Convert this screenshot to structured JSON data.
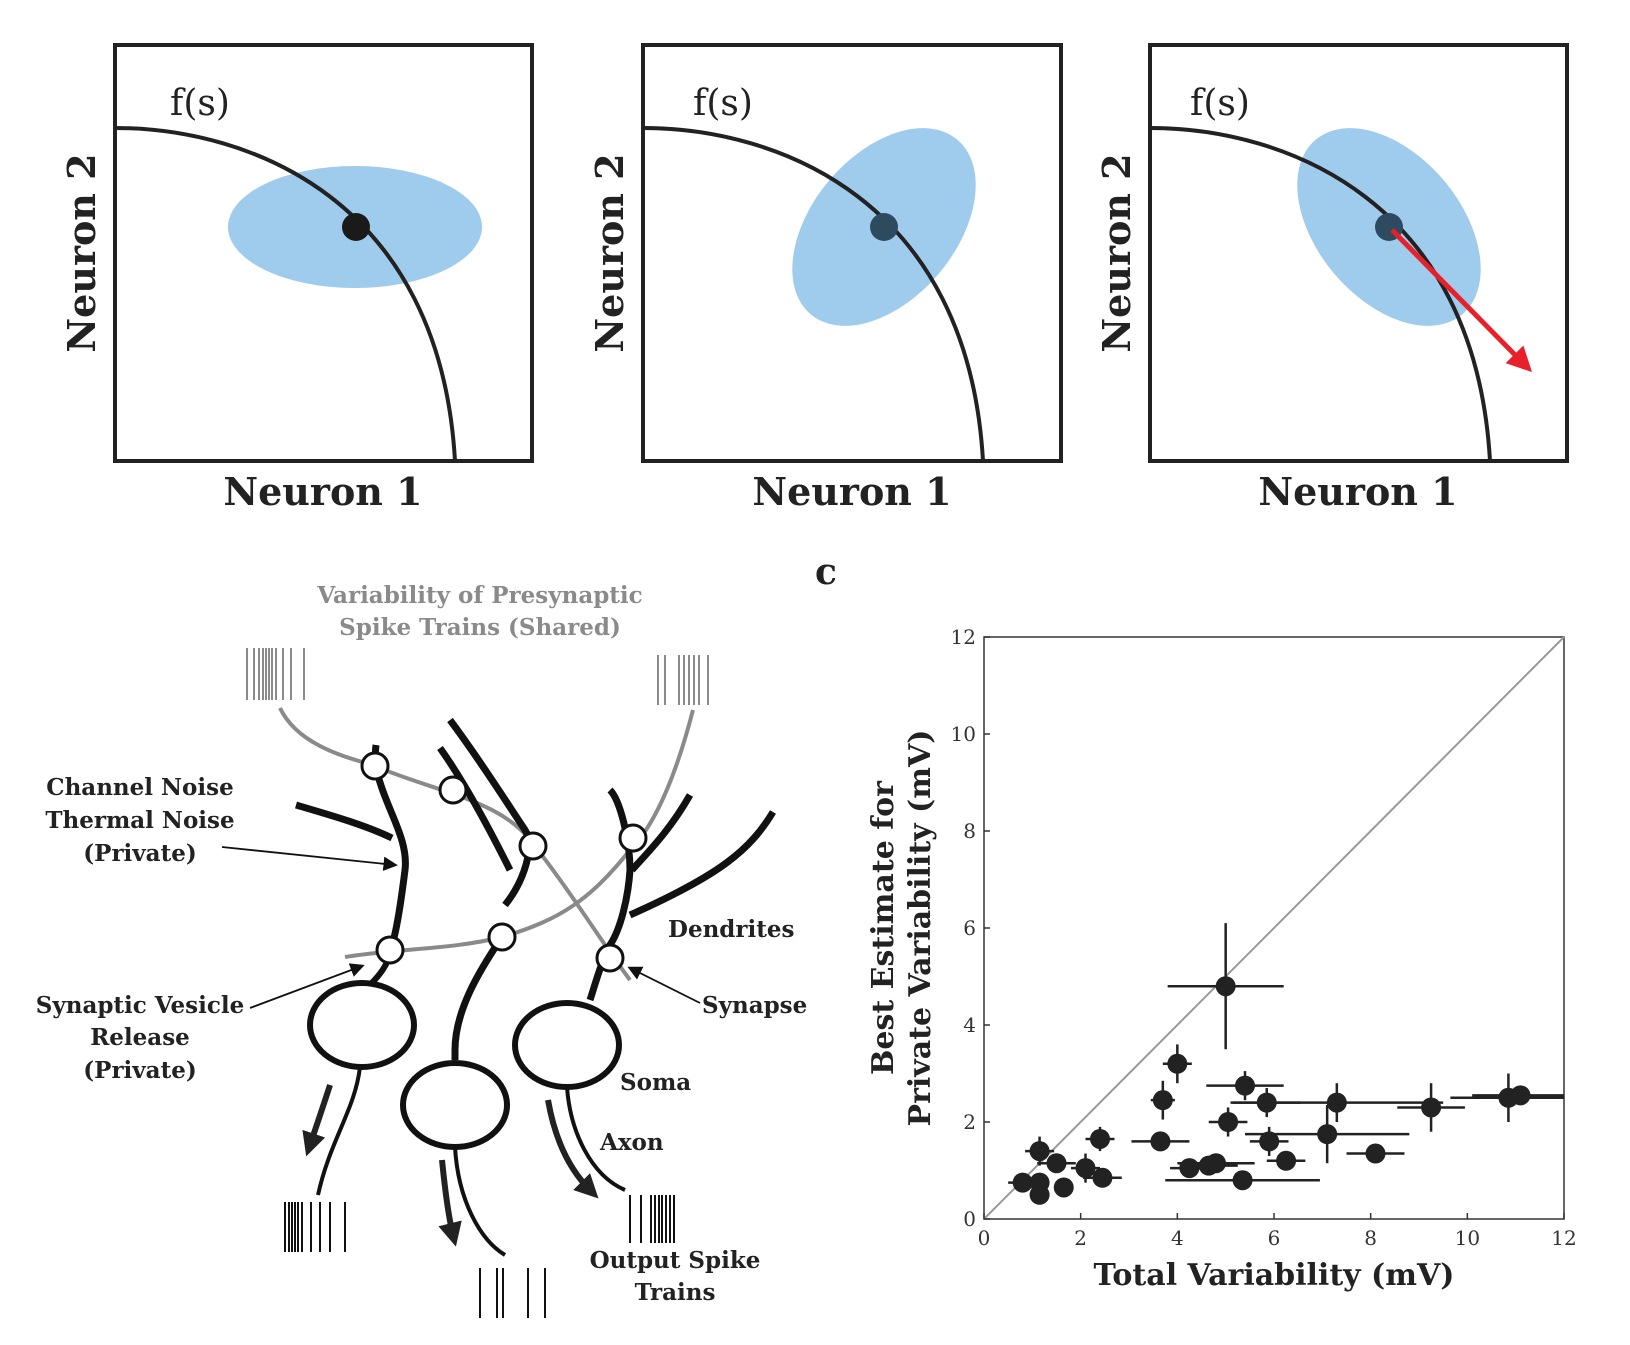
{
  "panels_top": [
    {
      "curve_label": "f(s)",
      "xlabel": "Neuron 1",
      "ylabel": "Neuron 2"
    },
    {
      "curve_label": "f(s)",
      "xlabel": "Neuron 1",
      "ylabel": "Neuron 2"
    },
    {
      "curve_label": "f(s)",
      "xlabel": "Neuron 1",
      "ylabel": "Neuron 2"
    }
  ],
  "panel_c_letter": "c",
  "diagram": {
    "presynaptic_line1": "Variability of Presynaptic",
    "presynaptic_line2": "Spike Trains (Shared)",
    "channel_noise_line1": "Channel Noise",
    "channel_noise_line2": "Thermal Noise",
    "channel_noise_line3": "(Private)",
    "vesicle_line1": "Synaptic Vesicle",
    "vesicle_line2": "Release",
    "vesicle_line3": "(Private)",
    "dendrites": "Dendrites",
    "synapse": "Synapse",
    "soma": "Soma",
    "axon": "Axon",
    "output_line1": "Output Spike",
    "output_line2": "Trains"
  },
  "colors": {
    "ellipse": "#9fcbec",
    "arrow": "#e8202a",
    "presynaptic_gray": "#8a8a8a",
    "points": "#222222"
  },
  "chart_data": {
    "type": "scatter",
    "xlabel": "Total Variability (mV)",
    "ylabel_line1": "Best Estimate for",
    "ylabel_line2": "Private Variability (mV)",
    "xlim": [
      0,
      12
    ],
    "ylim": [
      0,
      12
    ],
    "xticks": [
      "0",
      "2",
      "4",
      "6",
      "8",
      "10",
      "12"
    ],
    "yticks": [
      "0",
      "2",
      "4",
      "6",
      "8",
      "10",
      "12"
    ],
    "identity_line": true,
    "points": [
      {
        "x": 5.0,
        "y": 4.8,
        "xerr": 1.2,
        "yerr": 1.3
      },
      {
        "x": 4.0,
        "y": 3.2,
        "xerr": 0.3,
        "yerr": 0.4
      },
      {
        "x": 5.4,
        "y": 2.75,
        "xerr": 0.8,
        "yerr": 0.3
      },
      {
        "x": 3.7,
        "y": 2.45,
        "xerr": 0.25,
        "yerr": 0.4
      },
      {
        "x": 5.85,
        "y": 2.4,
        "xerr": 0.7,
        "yerr": 0.3
      },
      {
        "x": 7.3,
        "y": 2.4,
        "xerr": 2.2,
        "yerr": 0.4
      },
      {
        "x": 9.25,
        "y": 2.3,
        "xerr": 0.7,
        "yerr": 0.5
      },
      {
        "x": 10.85,
        "y": 2.5,
        "xerr": 1.2,
        "yerr": 0.5
      },
      {
        "x": 11.1,
        "y": 2.55,
        "xerr": 1.0,
        "yerr": 0.2
      },
      {
        "x": 5.05,
        "y": 2.0,
        "xerr": 0.4,
        "yerr": 0.3
      },
      {
        "x": 2.4,
        "y": 1.65,
        "xerr": 0.3,
        "yerr": 0.25
      },
      {
        "x": 3.65,
        "y": 1.6,
        "xerr": 0.6,
        "yerr": 0.2
      },
      {
        "x": 5.9,
        "y": 1.6,
        "xerr": 0.4,
        "yerr": 0.3
      },
      {
        "x": 7.1,
        "y": 1.75,
        "xerr": 1.7,
        "yerr": 0.6
      },
      {
        "x": 8.1,
        "y": 1.35,
        "xerr": 0.6,
        "yerr": 0.1
      },
      {
        "x": 6.25,
        "y": 1.2,
        "xerr": 0.4,
        "yerr": 0.2
      },
      {
        "x": 4.8,
        "y": 1.15,
        "xerr": 0.8,
        "yerr": 0.15
      },
      {
        "x": 4.65,
        "y": 1.1,
        "xerr": 0.6,
        "yerr": 0.2
      },
      {
        "x": 4.25,
        "y": 1.05,
        "xerr": 0.4,
        "yerr": 0.15
      },
      {
        "x": 5.35,
        "y": 0.8,
        "xerr": 1.6,
        "yerr": 0.1
      },
      {
        "x": 1.15,
        "y": 1.4,
        "xerr": 0.3,
        "yerr": 0.3
      },
      {
        "x": 1.5,
        "y": 1.15,
        "xerr": 0.4,
        "yerr": 0.2
      },
      {
        "x": 2.1,
        "y": 1.05,
        "xerr": 0.3,
        "yerr": 0.3
      },
      {
        "x": 2.45,
        "y": 0.85,
        "xerr": 0.4,
        "yerr": 0.2
      },
      {
        "x": 1.65,
        "y": 0.65,
        "xerr": 0.2,
        "yerr": 0.15
      },
      {
        "x": 0.8,
        "y": 0.75,
        "xerr": 0.3,
        "yerr": 0.15
      },
      {
        "x": 1.15,
        "y": 0.75,
        "xerr": 0.2,
        "yerr": 0.15
      },
      {
        "x": 1.15,
        "y": 0.5,
        "xerr": 0.15,
        "yerr": 0.1
      }
    ]
  }
}
